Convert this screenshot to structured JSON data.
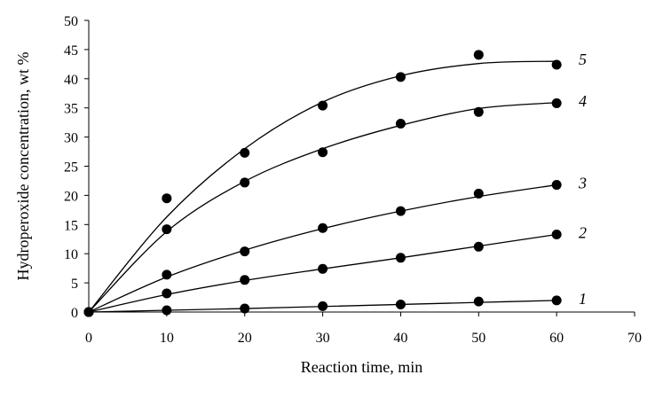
{
  "chart_data": {
    "type": "scatter",
    "title": "",
    "xlabel": "Reaction time, min",
    "ylabel": "Hydroperoxide concentration, wt %",
    "xlim": [
      0,
      70
    ],
    "ylim": [
      0,
      50
    ],
    "x_ticks": [
      0,
      10,
      20,
      30,
      40,
      50,
      60,
      70
    ],
    "y_ticks": [
      0,
      5,
      10,
      15,
      20,
      25,
      30,
      35,
      40,
      45,
      50
    ],
    "grid": false,
    "legend": "none",
    "series": [
      {
        "name": "1",
        "x": [
          0,
          10,
          20,
          30,
          40,
          50,
          60
        ],
        "y": [
          0,
          0.3,
          0.6,
          1.0,
          1.3,
          1.8,
          2.0
        ],
        "fit": [
          0,
          0.3,
          0.6,
          0.95,
          1.3,
          1.65,
          2.0
        ]
      },
      {
        "name": "2",
        "x": [
          0,
          10,
          20,
          30,
          40,
          50,
          60
        ],
        "y": [
          0,
          3.2,
          5.5,
          7.4,
          9.3,
          11.2,
          13.3
        ],
        "fit": [
          0,
          3.0,
          5.4,
          7.4,
          9.3,
          11.3,
          13.3
        ]
      },
      {
        "name": "3",
        "x": [
          0,
          10,
          20,
          30,
          40,
          50,
          60
        ],
        "y": [
          0,
          6.4,
          10.4,
          14.4,
          17.3,
          20.3,
          21.8
        ],
        "fit": [
          0,
          6.0,
          10.6,
          14.3,
          17.3,
          19.8,
          21.8
        ]
      },
      {
        "name": "4",
        "x": [
          0,
          10,
          20,
          30,
          40,
          50,
          60
        ],
        "y": [
          0,
          14.2,
          22.2,
          27.4,
          32.3,
          34.3,
          35.8
        ],
        "fit": [
          0,
          13.8,
          22.4,
          28.0,
          32.0,
          34.9,
          35.9
        ]
      },
      {
        "name": "5",
        "x": [
          0,
          10,
          20,
          30,
          40,
          50,
          60
        ],
        "y": [
          0,
          19.5,
          27.3,
          35.4,
          40.3,
          44.1,
          42.4
        ],
        "fit": [
          0,
          16.3,
          28.0,
          36.0,
          40.5,
          42.6,
          43.0
        ]
      }
    ]
  }
}
